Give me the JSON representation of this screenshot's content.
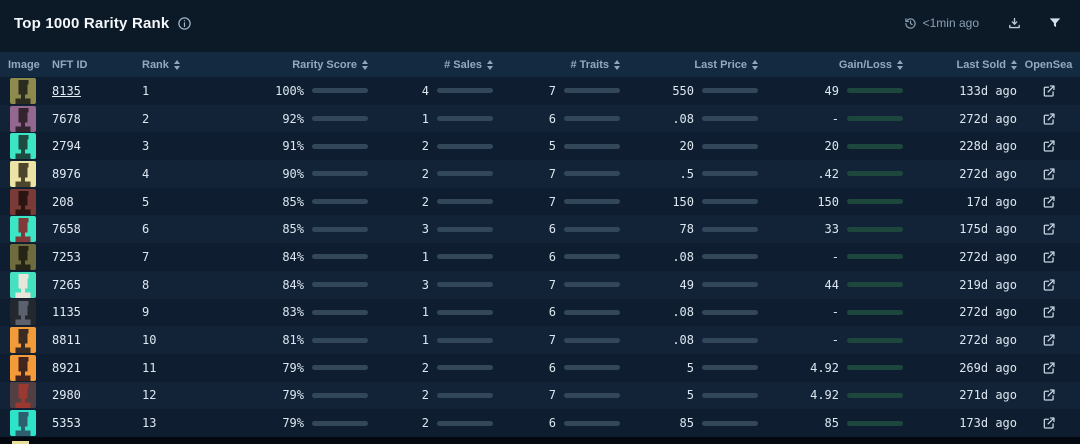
{
  "header": {
    "title": "Top 1000 Rarity Rank",
    "updated": "<1min ago"
  },
  "icons": {
    "info": "info-icon",
    "history": "refresh-history-icon",
    "download": "download-icon",
    "filter": "filter-icon",
    "external_link": "external-link-icon"
  },
  "colors": {
    "accent_blue": "#74bbe8",
    "accent_green": "#30b084",
    "bar_track_gray": "#33475b",
    "bar_track_green": "#1d473d",
    "row_odd": "#0e1d2f",
    "row_even": "#122338",
    "header_bg": "#132a41"
  },
  "table": {
    "columns": [
      {
        "label": "Image",
        "sortable": false,
        "cls": "c-image"
      },
      {
        "label": "NFT ID",
        "sortable": false,
        "cls": "c-id"
      },
      {
        "label": "Rank",
        "sortable": true,
        "cls": "c-rank"
      },
      {
        "label": "Rarity Score",
        "sortable": true,
        "cls": "c-rarity"
      },
      {
        "label": "# Sales",
        "sortable": true,
        "cls": "c-sales"
      },
      {
        "label": "# Traits",
        "sortable": true,
        "cls": "c-traits"
      },
      {
        "label": "Last Price",
        "sortable": true,
        "cls": "c-price"
      },
      {
        "label": "Gain/Loss",
        "sortable": true,
        "cls": "c-gain"
      },
      {
        "label": "Last Sold",
        "sortable": true,
        "cls": "c-sold"
      },
      {
        "label": "OpenSea",
        "sortable": false,
        "cls": "c-os"
      }
    ],
    "rows": [
      {
        "nft_id": "8135",
        "underline": true,
        "rank": "1",
        "rarity": "100%",
        "rarity_pct": 100,
        "sales": "4",
        "sales_pct": 42,
        "traits": "7",
        "traits_pct": 100,
        "price": "550",
        "price_pct": 75,
        "gain": "49",
        "gain_pct": 15,
        "sold": "133d ago",
        "avatar_bg": "#8d8a4d",
        "avatar_fg": "#2b2b20"
      },
      {
        "nft_id": "7678",
        "underline": false,
        "rank": "2",
        "rarity": "92%",
        "rarity_pct": 92,
        "sales": "1",
        "sales_pct": 8,
        "traits": "6",
        "traits_pct": 86,
        "price": ".08",
        "price_pct": 0,
        "gain": "-",
        "gain_pct": 0,
        "sold": "272d ago",
        "avatar_bg": "#92688f",
        "avatar_fg": "#33242f"
      },
      {
        "nft_id": "2794",
        "underline": false,
        "rank": "3",
        "rarity": "91%",
        "rarity_pct": 91,
        "sales": "2",
        "sales_pct": 18,
        "traits": "5",
        "traits_pct": 72,
        "price": "20",
        "price_pct": 4,
        "gain": "20",
        "gain_pct": 7,
        "sold": "228d ago",
        "avatar_bg": "#3ce6c4",
        "avatar_fg": "#1f4a42"
      },
      {
        "nft_id": "8976",
        "underline": false,
        "rank": "4",
        "rarity": "90%",
        "rarity_pct": 90,
        "sales": "2",
        "sales_pct": 18,
        "traits": "7",
        "traits_pct": 100,
        "price": ".5",
        "price_pct": 0,
        "gain": ".42",
        "gain_pct": 1,
        "sold": "272d ago",
        "avatar_bg": "#ece4a4",
        "avatar_fg": "#4d452c"
      },
      {
        "nft_id": "208",
        "underline": false,
        "rank": "5",
        "rarity": "85%",
        "rarity_pct": 85,
        "sales": "2",
        "sales_pct": 18,
        "traits": "7",
        "traits_pct": 100,
        "price": "150",
        "price_pct": 20,
        "gain": "150",
        "gain_pct": 35,
        "sold": "17d ago",
        "avatar_bg": "#7a3a35",
        "avatar_fg": "#2a1513"
      },
      {
        "nft_id": "7658",
        "underline": false,
        "rank": "6",
        "rarity": "85%",
        "rarity_pct": 85,
        "sales": "3",
        "sales_pct": 30,
        "traits": "6",
        "traits_pct": 86,
        "price": "78",
        "price_pct": 11,
        "gain": "33",
        "gain_pct": 10,
        "sold": "175d ago",
        "avatar_bg": "#3ce6c4",
        "avatar_fg": "#803a3a"
      },
      {
        "nft_id": "7253",
        "underline": false,
        "rank": "7",
        "rarity": "84%",
        "rarity_pct": 84,
        "sales": "1",
        "sales_pct": 8,
        "traits": "6",
        "traits_pct": 86,
        "price": ".08",
        "price_pct": 0,
        "gain": "-",
        "gain_pct": 0,
        "sold": "272d ago",
        "avatar_bg": "#6e6c3e",
        "avatar_fg": "#262414"
      },
      {
        "nft_id": "7265",
        "underline": false,
        "rank": "8",
        "rarity": "84%",
        "rarity_pct": 84,
        "sales": "3",
        "sales_pct": 30,
        "traits": "7",
        "traits_pct": 100,
        "price": "49",
        "price_pct": 7,
        "gain": "44",
        "gain_pct": 13,
        "sold": "219d ago",
        "avatar_bg": "#45e0c0",
        "avatar_fg": "#e8e6da"
      },
      {
        "nft_id": "1135",
        "underline": false,
        "rank": "9",
        "rarity": "83%",
        "rarity_pct": 83,
        "sales": "1",
        "sales_pct": 8,
        "traits": "6",
        "traits_pct": 86,
        "price": ".08",
        "price_pct": 0,
        "gain": "-",
        "gain_pct": 0,
        "sold": "272d ago",
        "avatar_bg": "#23272e",
        "avatar_fg": "#5b626e"
      },
      {
        "nft_id": "8811",
        "underline": false,
        "rank": "10",
        "rarity": "81%",
        "rarity_pct": 81,
        "sales": "1",
        "sales_pct": 8,
        "traits": "7",
        "traits_pct": 100,
        "price": ".08",
        "price_pct": 0,
        "gain": "-",
        "gain_pct": 0,
        "sold": "272d ago",
        "avatar_bg": "#f29b38",
        "avatar_fg": "#3a2c22"
      },
      {
        "nft_id": "8921",
        "underline": false,
        "rank": "11",
        "rarity": "79%",
        "rarity_pct": 79,
        "sales": "2",
        "sales_pct": 18,
        "traits": "6",
        "traits_pct": 86,
        "price": "5",
        "price_pct": 1,
        "gain": "4.92",
        "gain_pct": 2,
        "sold": "269d ago",
        "avatar_bg": "#f29b38",
        "avatar_fg": "#43251f"
      },
      {
        "nft_id": "2980",
        "underline": false,
        "rank": "12",
        "rarity": "79%",
        "rarity_pct": 79,
        "sales": "2",
        "sales_pct": 18,
        "traits": "7",
        "traits_pct": 100,
        "price": "5",
        "price_pct": 1,
        "gain": "4.92",
        "gain_pct": 2,
        "sold": "271d ago",
        "avatar_bg": "#514043",
        "avatar_fg": "#9c3832"
      },
      {
        "nft_id": "5353",
        "underline": false,
        "rank": "13",
        "rarity": "79%",
        "rarity_pct": 79,
        "sales": "2",
        "sales_pct": 18,
        "traits": "6",
        "traits_pct": 86,
        "price": "85",
        "price_pct": 12,
        "gain": "85",
        "gain_pct": 25,
        "sold": "173d ago",
        "avatar_bg": "#2ee4c8",
        "avatar_fg": "#2d5f6e"
      }
    ],
    "partial_next_row_avatar_bg": "#e8e09a"
  }
}
